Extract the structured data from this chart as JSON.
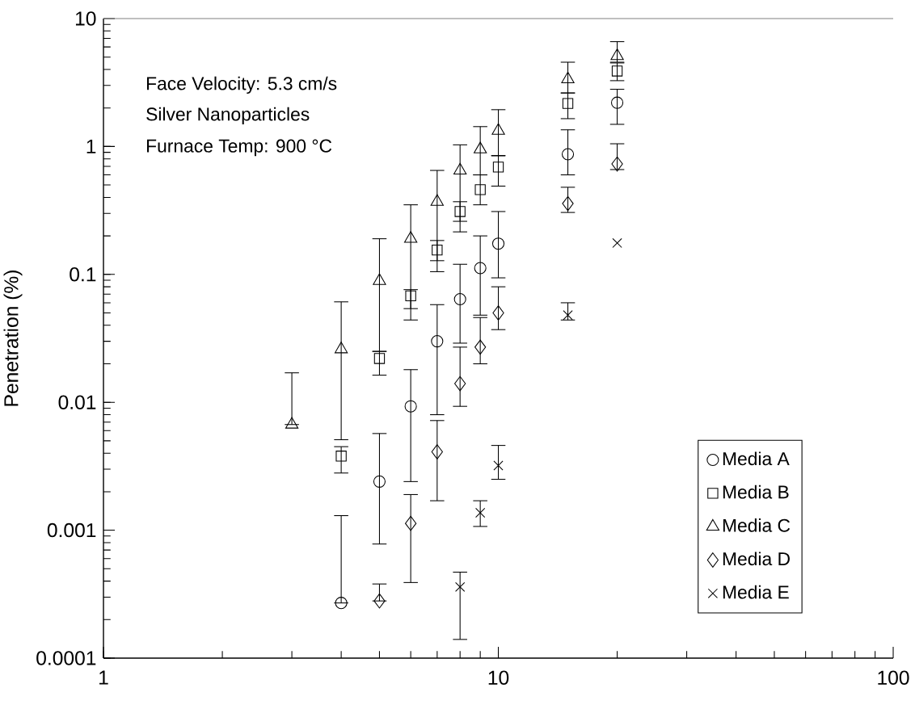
{
  "chart_data": {
    "type": "scatter",
    "ylabel": "Penetration (%)",
    "log": "xy",
    "xlim": [
      1,
      100
    ],
    "xticks": [
      1,
      10,
      100
    ],
    "ylim": [
      0.0001,
      10
    ],
    "yticks": [
      0.0001,
      0.001,
      0.01,
      0.1,
      1,
      10
    ],
    "legend": "bottom right",
    "grid": false,
    "annotations": [
      "Face Velocity: 5.3 cm/s",
      "Silver Nanoparticles",
      "Furnace Temp: 900 °C"
    ],
    "series": [
      {
        "name": "Media A",
        "color": "#000000",
        "marker": "circle",
        "x": [
          4,
          5,
          6,
          7,
          8,
          9,
          10,
          15,
          20
        ],
        "values": [
          0.00027,
          0.0024,
          0.0093,
          0.03,
          0.064,
          0.112,
          0.174,
          0.87,
          2.2
        ],
        "errors": [
          [
            0.00027,
            0.0013
          ],
          [
            0.00078,
            0.0057
          ],
          [
            0.0024,
            0.018
          ],
          [
            0.008,
            0.058
          ],
          [
            0.029,
            0.12
          ],
          [
            0.048,
            0.2
          ],
          [
            0.094,
            0.31
          ],
          [
            0.6,
            1.35
          ],
          [
            1.49,
            2.8
          ]
        ]
      },
      {
        "name": "Media B",
        "color": "#000000",
        "marker": "square",
        "x": [
          4,
          5,
          6,
          7,
          8,
          9,
          10,
          15,
          20
        ],
        "values": [
          0.0038,
          0.022,
          0.068,
          0.155,
          0.31,
          0.46,
          0.69,
          2.17,
          3.89
        ],
        "errors": [
          [
            0.0028,
            0.0045
          ],
          [
            0.0163,
            0.025
          ],
          [
            0.044,
            0.076
          ],
          [
            0.128,
            0.184
          ],
          [
            0.215,
            0.37
          ],
          [
            0.35,
            0.6
          ],
          [
            0.49,
            0.85
          ],
          [
            1.65,
            2.62
          ],
          [
            3.27,
            4.5
          ]
        ]
      },
      {
        "name": "Media C",
        "color": "#000000",
        "marker": "triangle",
        "x": [
          3,
          4,
          5,
          6,
          7,
          8,
          9,
          10,
          15,
          20
        ],
        "values": [
          0.0067,
          0.026,
          0.089,
          0.19,
          0.37,
          0.65,
          0.95,
          1.33,
          3.36,
          5.1
        ],
        "errors": [
          [
            0.0067,
            0.017
          ],
          [
            0.0051,
            0.061
          ],
          [
            0.025,
            0.19
          ],
          [
            0.054,
            0.35
          ],
          [
            0.105,
            0.65
          ],
          [
            0.26,
            1.03
          ],
          [
            0.6,
            1.43
          ],
          [
            0.845,
            1.94
          ],
          [
            2.62,
            4.56
          ],
          [
            4.56,
            6.6
          ]
        ]
      },
      {
        "name": "Media D",
        "color": "#000000",
        "marker": "diamond",
        "x": [
          5,
          6,
          7,
          8,
          9,
          10,
          15,
          20
        ],
        "values": [
          0.00028,
          0.00113,
          0.0041,
          0.014,
          0.027,
          0.05,
          0.358,
          0.73
        ],
        "errors": [
          [
            0.00028,
            0.00038
          ],
          [
            0.00039,
            0.0019
          ],
          [
            0.0017,
            0.0072
          ],
          [
            0.0093,
            0.027
          ],
          [
            0.02,
            0.046
          ],
          [
            0.037,
            0.08
          ],
          [
            0.305,
            0.48
          ],
          [
            0.66,
            1.05
          ]
        ]
      },
      {
        "name": "Media E",
        "color": "#000000",
        "marker": "cross",
        "x": [
          8,
          9,
          10,
          15,
          20
        ],
        "values": [
          0.00036,
          0.00137,
          0.0032,
          0.048,
          0.176
        ],
        "errors": [
          [
            0.00014,
            0.00047
          ],
          [
            0.00107,
            0.0017
          ],
          [
            0.0025,
            0.0046
          ],
          [
            0.044,
            0.06
          ],
          null
        ]
      }
    ]
  }
}
